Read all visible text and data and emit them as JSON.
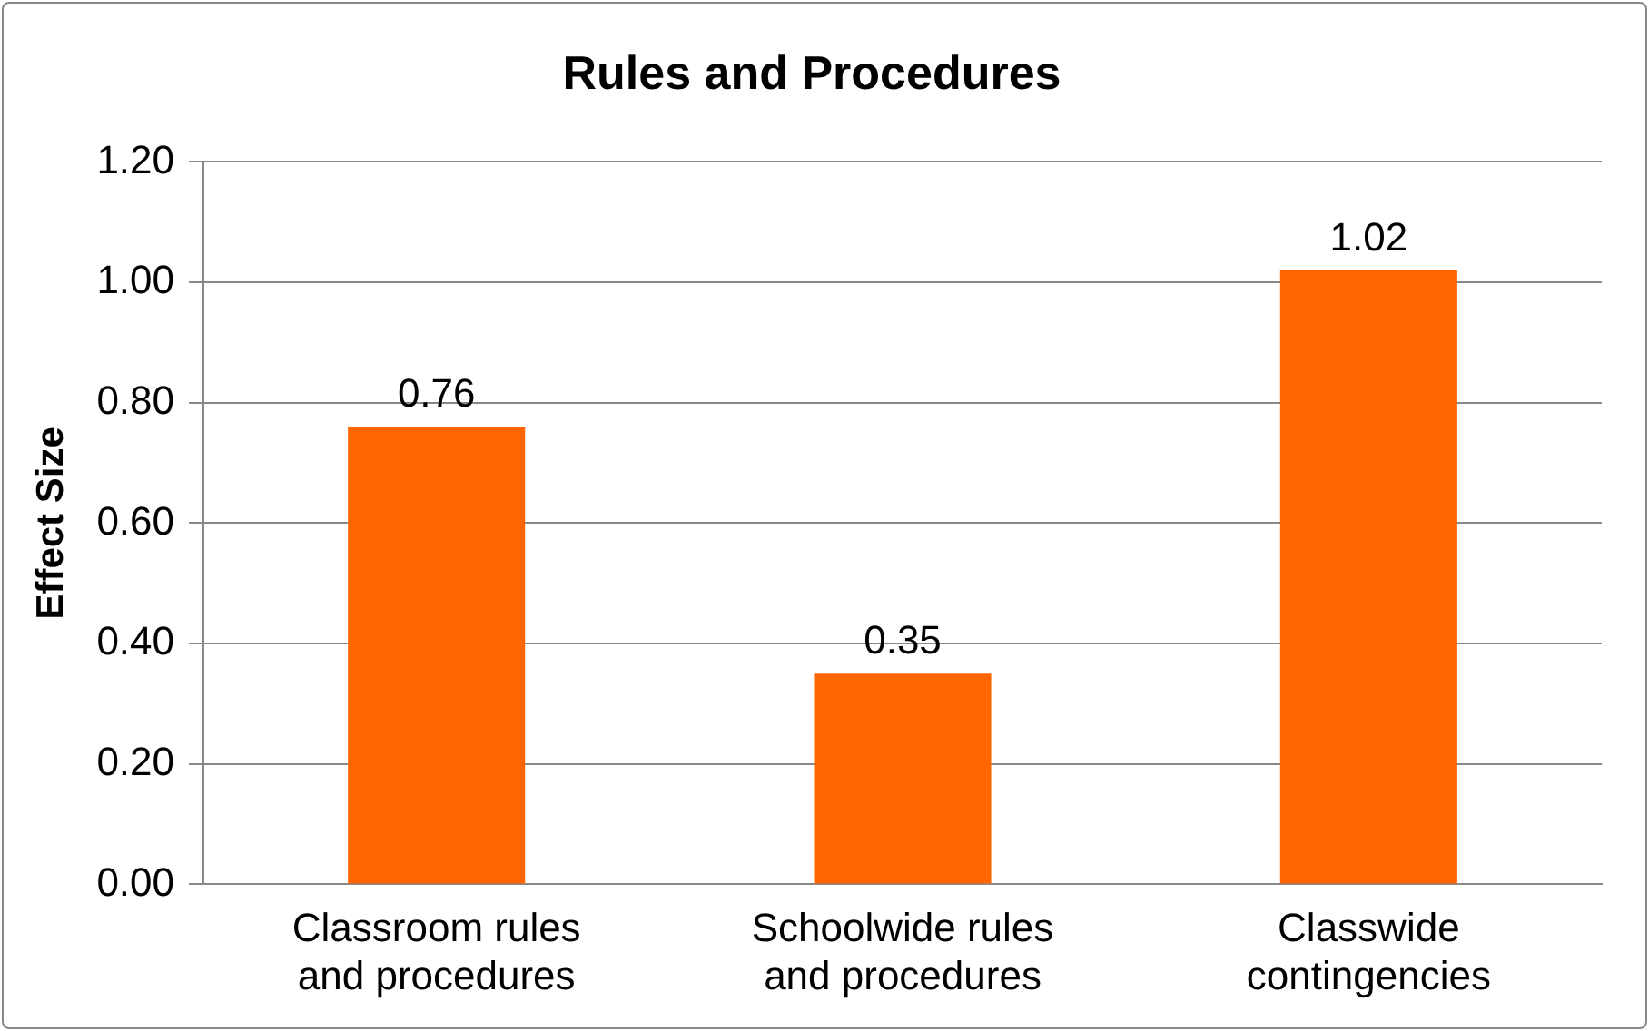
{
  "chart_data": {
    "type": "bar",
    "title": "Rules and Procedures",
    "ylabel": "Effect Size",
    "categories": [
      "Classroom rules and procedures",
      "Schoolwide rules and procedures",
      "Classwide contingencies"
    ],
    "values": [
      0.76,
      0.35,
      1.02
    ],
    "color": "#ff6600",
    "ylim": [
      0,
      1.2
    ],
    "yticks": [
      {
        "value": 0,
        "label": "0.00"
      },
      {
        "value": 0.2,
        "label": "0.20"
      },
      {
        "value": 0.4,
        "label": "0.40"
      },
      {
        "value": 0.6,
        "label": "0.60"
      },
      {
        "value": 0.8,
        "label": "0.80"
      },
      {
        "value": 1,
        "label": "1.00"
      },
      {
        "value": 1.2,
        "label": "1.20"
      }
    ],
    "grid": "y",
    "data_labels": true,
    "legend": false
  }
}
